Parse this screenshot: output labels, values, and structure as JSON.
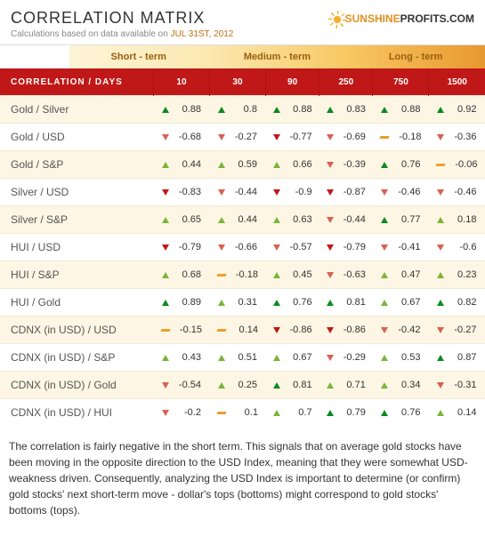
{
  "header": {
    "title": "CORRELATION MATRIX",
    "subtitle_prefix": "Calculations based on data available on ",
    "date": "JUL 31ST, 2012",
    "logo_sun": "SUNSHINE",
    "logo_rest": "PROFITS.COM"
  },
  "terms": {
    "short": "Short - term",
    "medium": "Medium - term",
    "long": "Long - term"
  },
  "table": {
    "row_header": "CORRELATION / DAYS",
    "columns": [
      "10",
      "30",
      "90",
      "250",
      "750",
      "1500"
    ],
    "rows": [
      {
        "label": "Gold / Silver",
        "cells": [
          {
            "a": "up-strong",
            "v": "0.88"
          },
          {
            "a": "up-strong",
            "v": "0.8"
          },
          {
            "a": "up-strong",
            "v": "0.88"
          },
          {
            "a": "up-strong",
            "v": "0.83"
          },
          {
            "a": "up-strong",
            "v": "0.88"
          },
          {
            "a": "up-strong",
            "v": "0.92"
          }
        ]
      },
      {
        "label": "Gold / USD",
        "cells": [
          {
            "a": "down-weak",
            "v": "-0.68"
          },
          {
            "a": "down-weak",
            "v": "-0.27"
          },
          {
            "a": "down-strong",
            "v": "-0.77"
          },
          {
            "a": "down-weak",
            "v": "-0.69"
          },
          {
            "a": "flat",
            "v": "-0.18"
          },
          {
            "a": "down-weak",
            "v": "-0.36"
          }
        ]
      },
      {
        "label": "Gold / S&P",
        "cells": [
          {
            "a": "up-weak",
            "v": "0.44"
          },
          {
            "a": "up-weak",
            "v": "0.59"
          },
          {
            "a": "up-weak",
            "v": "0.66"
          },
          {
            "a": "down-weak",
            "v": "-0.39"
          },
          {
            "a": "up-strong",
            "v": "0.76"
          },
          {
            "a": "flat",
            "v": "-0.06"
          }
        ]
      },
      {
        "label": "Silver / USD",
        "cells": [
          {
            "a": "down-strong",
            "v": "-0.83"
          },
          {
            "a": "down-weak",
            "v": "-0.44"
          },
          {
            "a": "down-strong",
            "v": "-0.9"
          },
          {
            "a": "down-strong",
            "v": "-0.87"
          },
          {
            "a": "down-weak",
            "v": "-0.46"
          },
          {
            "a": "down-weak",
            "v": "-0.46"
          }
        ]
      },
      {
        "label": "Silver / S&P",
        "cells": [
          {
            "a": "up-weak",
            "v": "0.65"
          },
          {
            "a": "up-weak",
            "v": "0.44"
          },
          {
            "a": "up-weak",
            "v": "0.63"
          },
          {
            "a": "down-weak",
            "v": "-0.44"
          },
          {
            "a": "up-strong",
            "v": "0.77"
          },
          {
            "a": "up-weak",
            "v": "0.18"
          }
        ]
      },
      {
        "label": "HUI / USD",
        "cells": [
          {
            "a": "down-strong",
            "v": "-0.79"
          },
          {
            "a": "down-weak",
            "v": "-0.66"
          },
          {
            "a": "down-weak",
            "v": "-0.57"
          },
          {
            "a": "down-strong",
            "v": "-0.79"
          },
          {
            "a": "down-weak",
            "v": "-0.41"
          },
          {
            "a": "down-weak",
            "v": "-0.6"
          }
        ]
      },
      {
        "label": "HUI / S&P",
        "cells": [
          {
            "a": "up-weak",
            "v": "0.68"
          },
          {
            "a": "flat",
            "v": "-0.18"
          },
          {
            "a": "up-weak",
            "v": "0.45"
          },
          {
            "a": "down-weak",
            "v": "-0.63"
          },
          {
            "a": "up-weak",
            "v": "0.47"
          },
          {
            "a": "up-weak",
            "v": "0.23"
          }
        ]
      },
      {
        "label": "HUI / Gold",
        "cells": [
          {
            "a": "up-strong",
            "v": "0.89"
          },
          {
            "a": "up-weak",
            "v": "0.31"
          },
          {
            "a": "up-strong",
            "v": "0.76"
          },
          {
            "a": "up-strong",
            "v": "0.81"
          },
          {
            "a": "up-weak",
            "v": "0.67"
          },
          {
            "a": "up-strong",
            "v": "0.82"
          }
        ]
      },
      {
        "label": "CDNX (in USD) / USD",
        "cells": [
          {
            "a": "flat",
            "v": "-0.15"
          },
          {
            "a": "flat",
            "v": "0.14"
          },
          {
            "a": "down-strong",
            "v": "-0.86"
          },
          {
            "a": "down-strong",
            "v": "-0.86"
          },
          {
            "a": "down-weak",
            "v": "-0.42"
          },
          {
            "a": "down-weak",
            "v": "-0.27"
          }
        ]
      },
      {
        "label": "CDNX (in USD) / S&P",
        "cells": [
          {
            "a": "up-weak",
            "v": "0.43"
          },
          {
            "a": "up-weak",
            "v": "0.51"
          },
          {
            "a": "up-weak",
            "v": "0.67"
          },
          {
            "a": "down-weak",
            "v": "-0.29"
          },
          {
            "a": "up-weak",
            "v": "0.53"
          },
          {
            "a": "up-strong",
            "v": "0.87"
          }
        ]
      },
      {
        "label": "CDNX (in USD) / Gold",
        "cells": [
          {
            "a": "down-weak",
            "v": "-0.54"
          },
          {
            "a": "up-weak",
            "v": "0.25"
          },
          {
            "a": "up-strong",
            "v": "0.81"
          },
          {
            "a": "up-weak",
            "v": "0.71"
          },
          {
            "a": "up-weak",
            "v": "0.34"
          },
          {
            "a": "down-weak",
            "v": "-0.31"
          }
        ]
      },
      {
        "label": "CDNX (in USD) / HUI",
        "cells": [
          {
            "a": "down-weak",
            "v": "-0.2"
          },
          {
            "a": "flat",
            "v": "0.1"
          },
          {
            "a": "up-weak",
            "v": "0.7"
          },
          {
            "a": "up-strong",
            "v": "0.79"
          },
          {
            "a": "up-strong",
            "v": "0.76"
          },
          {
            "a": "up-weak",
            "v": "0.14"
          }
        ]
      }
    ]
  },
  "footer": "The correlation is fairly negative in the short term. This signals that on average gold stocks have been moving in the opposite direction to the USD Index, meaning that they were somewhat USD-weakness driven. Consequently, analyzing the USD Index is important to determine (or confirm) gold stocks' next short-term move - dollar's tops (bottoms) might correspond to gold stocks' bottoms (tops)."
}
